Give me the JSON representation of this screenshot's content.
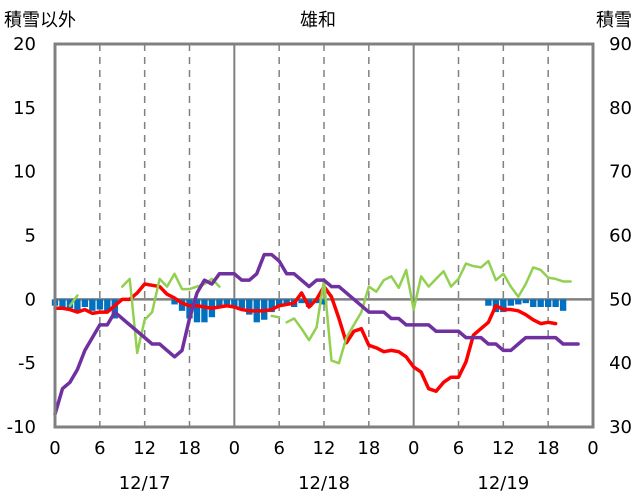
{
  "chart_data": {
    "type": "line",
    "title": "雄和",
    "left_axis_label": "積雪以外",
    "right_axis_label": "積雪",
    "ylim_left": [
      -10,
      20
    ],
    "yticks_left": [
      20,
      15,
      10,
      5,
      0,
      -5,
      -10
    ],
    "ylim_right": [
      30,
      90
    ],
    "yticks_right": [
      90,
      80,
      70,
      60,
      50,
      40,
      30
    ],
    "xlim": [
      0,
      72
    ],
    "x_tick_labels": [
      "0",
      "6",
      "12",
      "18",
      "0",
      "6",
      "12",
      "18",
      "0",
      "6",
      "12",
      "18",
      "0"
    ],
    "date_labels": [
      {
        "x": 12,
        "label": "12/17"
      },
      {
        "x": 36,
        "label": "12/18"
      },
      {
        "x": 60,
        "label": "12/19"
      }
    ],
    "grid": "vertical dashed every 6h, solid at day boundaries",
    "colors": {
      "temperature": "#ff0000",
      "humidity_like": "#92d050",
      "wind": "#7030a0",
      "precip": "#0070c0",
      "frame": "#808080"
    },
    "series": [
      {
        "key": "temperature",
        "color": "#ff0000",
        "points": [
          [
            0,
            -0.7
          ],
          [
            1,
            -0.7
          ],
          [
            2,
            -0.8
          ],
          [
            3,
            -1.0
          ],
          [
            4,
            -0.8
          ],
          [
            5,
            -1.1
          ],
          [
            6,
            -1.0
          ],
          [
            7,
            -1.0
          ],
          [
            8,
            -0.5
          ],
          [
            9,
            0.0
          ],
          [
            10,
            0.0
          ],
          [
            11,
            0.5
          ],
          [
            12,
            1.2
          ],
          [
            13,
            1.1
          ],
          [
            14,
            1.0
          ],
          [
            15,
            0.4
          ],
          [
            16,
            0.1
          ],
          [
            17,
            -0.3
          ],
          [
            18,
            -0.5
          ],
          [
            19,
            -0.5
          ],
          [
            20,
            -0.6
          ],
          [
            21,
            -0.7
          ],
          [
            22,
            -0.6
          ],
          [
            23,
            -0.5
          ],
          [
            24,
            -0.6
          ],
          [
            25,
            -0.8
          ],
          [
            26,
            -0.9
          ],
          [
            27,
            -0.9
          ],
          [
            28,
            -0.9
          ],
          [
            29,
            -0.8
          ],
          [
            30,
            -0.5
          ],
          [
            31,
            -0.4
          ],
          [
            32,
            -0.3
          ],
          [
            33,
            0.5
          ],
          [
            34,
            -0.6
          ],
          [
            35,
            0.0
          ],
          [
            36,
            1.0
          ],
          [
            37,
            0.2
          ],
          [
            38,
            -1.5
          ],
          [
            39,
            -3.4
          ],
          [
            40,
            -2.5
          ],
          [
            41,
            -2.3
          ],
          [
            42,
            -3.6
          ],
          [
            43,
            -3.8
          ],
          [
            44,
            -4.1
          ],
          [
            45,
            -4.0
          ],
          [
            46,
            -4.1
          ],
          [
            47,
            -4.5
          ],
          [
            48,
            -5.3
          ],
          [
            49,
            -5.7
          ],
          [
            50,
            -7.0
          ],
          [
            51,
            -7.2
          ],
          [
            52,
            -6.5
          ],
          [
            53,
            -6.1
          ],
          [
            54,
            -6.1
          ],
          [
            55,
            -4.9
          ],
          [
            56,
            -2.8
          ],
          [
            57,
            -2.3
          ],
          [
            58,
            -1.8
          ],
          [
            59,
            -0.5
          ],
          [
            60,
            -0.8
          ],
          [
            61,
            -0.8
          ],
          [
            62,
            -0.9
          ],
          [
            63,
            -1.2
          ],
          [
            64,
            -1.6
          ],
          [
            65,
            -1.9
          ],
          [
            66,
            -1.8
          ],
          [
            67,
            -1.9
          ]
        ]
      },
      {
        "key": "humidity_like",
        "color": "#92d050",
        "points": [
          [
            2,
            -0.5
          ],
          [
            3,
            0.3
          ],
          null,
          [
            9,
            1.0
          ],
          [
            10,
            1.6
          ],
          [
            11,
            -4.2
          ],
          [
            12,
            -1.6
          ],
          [
            13,
            -1.0
          ],
          [
            14,
            1.6
          ],
          [
            15,
            1.0
          ],
          [
            16,
            2.0
          ],
          [
            17,
            0.8
          ],
          [
            18,
            0.8
          ],
          [
            19,
            1.0
          ],
          [
            20,
            1.2
          ],
          [
            21,
            1.6
          ],
          [
            22,
            1.0
          ],
          null,
          [
            29,
            -1.3
          ],
          [
            30,
            -1.4
          ],
          null,
          [
            31,
            -1.8
          ],
          [
            32,
            -1.5
          ],
          [
            33,
            -2.3
          ],
          [
            34,
            -3.2
          ],
          [
            35,
            -2.2
          ],
          [
            36,
            1.5
          ],
          [
            37,
            -4.8
          ],
          [
            38,
            -5.0
          ],
          [
            39,
            -3.0
          ],
          [
            40,
            -2.0
          ],
          [
            41,
            -1.0
          ],
          [
            42,
            1.0
          ],
          [
            43,
            0.6
          ],
          [
            44,
            1.5
          ],
          [
            45,
            1.8
          ],
          [
            46,
            0.9
          ],
          [
            47,
            2.3
          ],
          [
            48,
            -0.8
          ],
          [
            49,
            1.8
          ],
          [
            50,
            1.0
          ],
          [
            51,
            1.6
          ],
          [
            52,
            2.2
          ],
          [
            53,
            1.0
          ],
          [
            54,
            1.6
          ],
          [
            55,
            2.8
          ],
          [
            56,
            2.6
          ],
          [
            57,
            2.5
          ],
          [
            58,
            3.0
          ],
          [
            59,
            1.5
          ],
          [
            60,
            2.0
          ],
          [
            61,
            1.0
          ],
          [
            62,
            0.2
          ],
          [
            63,
            1.2
          ],
          [
            64,
            2.5
          ],
          [
            65,
            2.3
          ],
          [
            66,
            1.7
          ],
          [
            67,
            1.6
          ],
          [
            68,
            1.4
          ],
          [
            69,
            1.4
          ]
        ]
      },
      {
        "key": "wind",
        "color": "#7030a0",
        "points": [
          [
            0,
            -9.0
          ],
          [
            1,
            -7.0
          ],
          [
            2,
            -6.5
          ],
          [
            3,
            -5.5
          ],
          [
            4,
            -4.0
          ],
          [
            5,
            -3.0
          ],
          [
            6,
            -2.0
          ],
          [
            7,
            -2.0
          ],
          [
            8,
            -1.0
          ],
          [
            9,
            -1.5
          ],
          [
            10,
            -2.0
          ],
          [
            11,
            -2.5
          ],
          [
            12,
            -3.0
          ],
          [
            13,
            -3.5
          ],
          [
            14,
            -3.5
          ],
          [
            15,
            -4.0
          ],
          [
            16,
            -4.5
          ],
          [
            17,
            -4.0
          ],
          [
            18,
            -1.5
          ],
          [
            19,
            0.5
          ],
          [
            20,
            1.5
          ],
          [
            21,
            1.2
          ],
          [
            22,
            2.0
          ],
          [
            23,
            2.0
          ],
          [
            24,
            2.0
          ],
          [
            25,
            1.5
          ],
          [
            26,
            1.5
          ],
          [
            27,
            2.0
          ],
          [
            28,
            3.5
          ],
          [
            29,
            3.5
          ],
          [
            30,
            3.0
          ],
          [
            31,
            2.0
          ],
          [
            32,
            2.0
          ],
          [
            33,
            1.5
          ],
          [
            34,
            1.0
          ],
          [
            35,
            1.5
          ],
          [
            36,
            1.5
          ],
          [
            37,
            1.0
          ],
          [
            38,
            1.0
          ],
          [
            39,
            0.5
          ],
          [
            40,
            0.0
          ],
          [
            41,
            -0.5
          ],
          [
            42,
            -1.0
          ],
          [
            43,
            -1.0
          ],
          [
            44,
            -1.0
          ],
          [
            45,
            -1.5
          ],
          [
            46,
            -1.5
          ],
          [
            47,
            -2.0
          ],
          [
            48,
            -2.0
          ],
          [
            49,
            -2.0
          ],
          [
            50,
            -2.0
          ],
          [
            51,
            -2.5
          ],
          [
            52,
            -2.5
          ],
          [
            53,
            -2.5
          ],
          [
            54,
            -2.5
          ],
          [
            55,
            -3.0
          ],
          [
            56,
            -3.0
          ],
          [
            57,
            -3.0
          ],
          [
            58,
            -3.5
          ],
          [
            59,
            -3.5
          ],
          [
            60,
            -4.0
          ],
          [
            61,
            -4.0
          ],
          [
            62,
            -3.5
          ],
          [
            63,
            -3.0
          ],
          [
            64,
            -3.0
          ],
          [
            65,
            -3.0
          ],
          [
            66,
            -3.0
          ],
          [
            67,
            -3.0
          ],
          [
            68,
            -3.5
          ],
          [
            69,
            -3.5
          ],
          [
            70,
            -3.5
          ]
        ]
      }
    ],
    "bars": {
      "key": "precip",
      "color": "#0070c0",
      "points": [
        [
          0,
          -0.5
        ],
        [
          1,
          -0.6
        ],
        [
          2,
          -0.7
        ],
        [
          3,
          -0.9
        ],
        [
          4,
          -0.6
        ],
        [
          5,
          -0.9
        ],
        [
          6,
          -0.8
        ],
        [
          7,
          -1.0
        ],
        [
          8,
          -1.5
        ],
        [
          16,
          -0.4
        ],
        [
          17,
          -0.9
        ],
        [
          18,
          -1.5
        ],
        [
          19,
          -1.8
        ],
        [
          20,
          -1.8
        ],
        [
          21,
          -1.4
        ],
        [
          22,
          -0.6
        ],
        [
          23,
          -0.4
        ],
        [
          24,
          -0.6
        ],
        [
          25,
          -0.7
        ],
        [
          26,
          -1.2
        ],
        [
          27,
          -1.8
        ],
        [
          28,
          -1.6
        ],
        [
          29,
          -1.0
        ],
        [
          30,
          -0.6
        ],
        [
          31,
          -0.4
        ],
        [
          32,
          -0.6
        ],
        [
          33,
          -0.3
        ],
        [
          34,
          -0.6
        ],
        [
          35,
          -0.3
        ],
        [
          36,
          -0.4
        ],
        [
          58,
          -0.5
        ],
        [
          59,
          -1.0
        ],
        [
          60,
          -1.0
        ],
        [
          61,
          -0.5
        ],
        [
          62,
          -0.4
        ],
        [
          63,
          -0.3
        ],
        [
          64,
          -0.6
        ],
        [
          65,
          -0.6
        ],
        [
          66,
          -0.6
        ],
        [
          67,
          -0.6
        ],
        [
          68,
          -0.9
        ]
      ]
    }
  }
}
